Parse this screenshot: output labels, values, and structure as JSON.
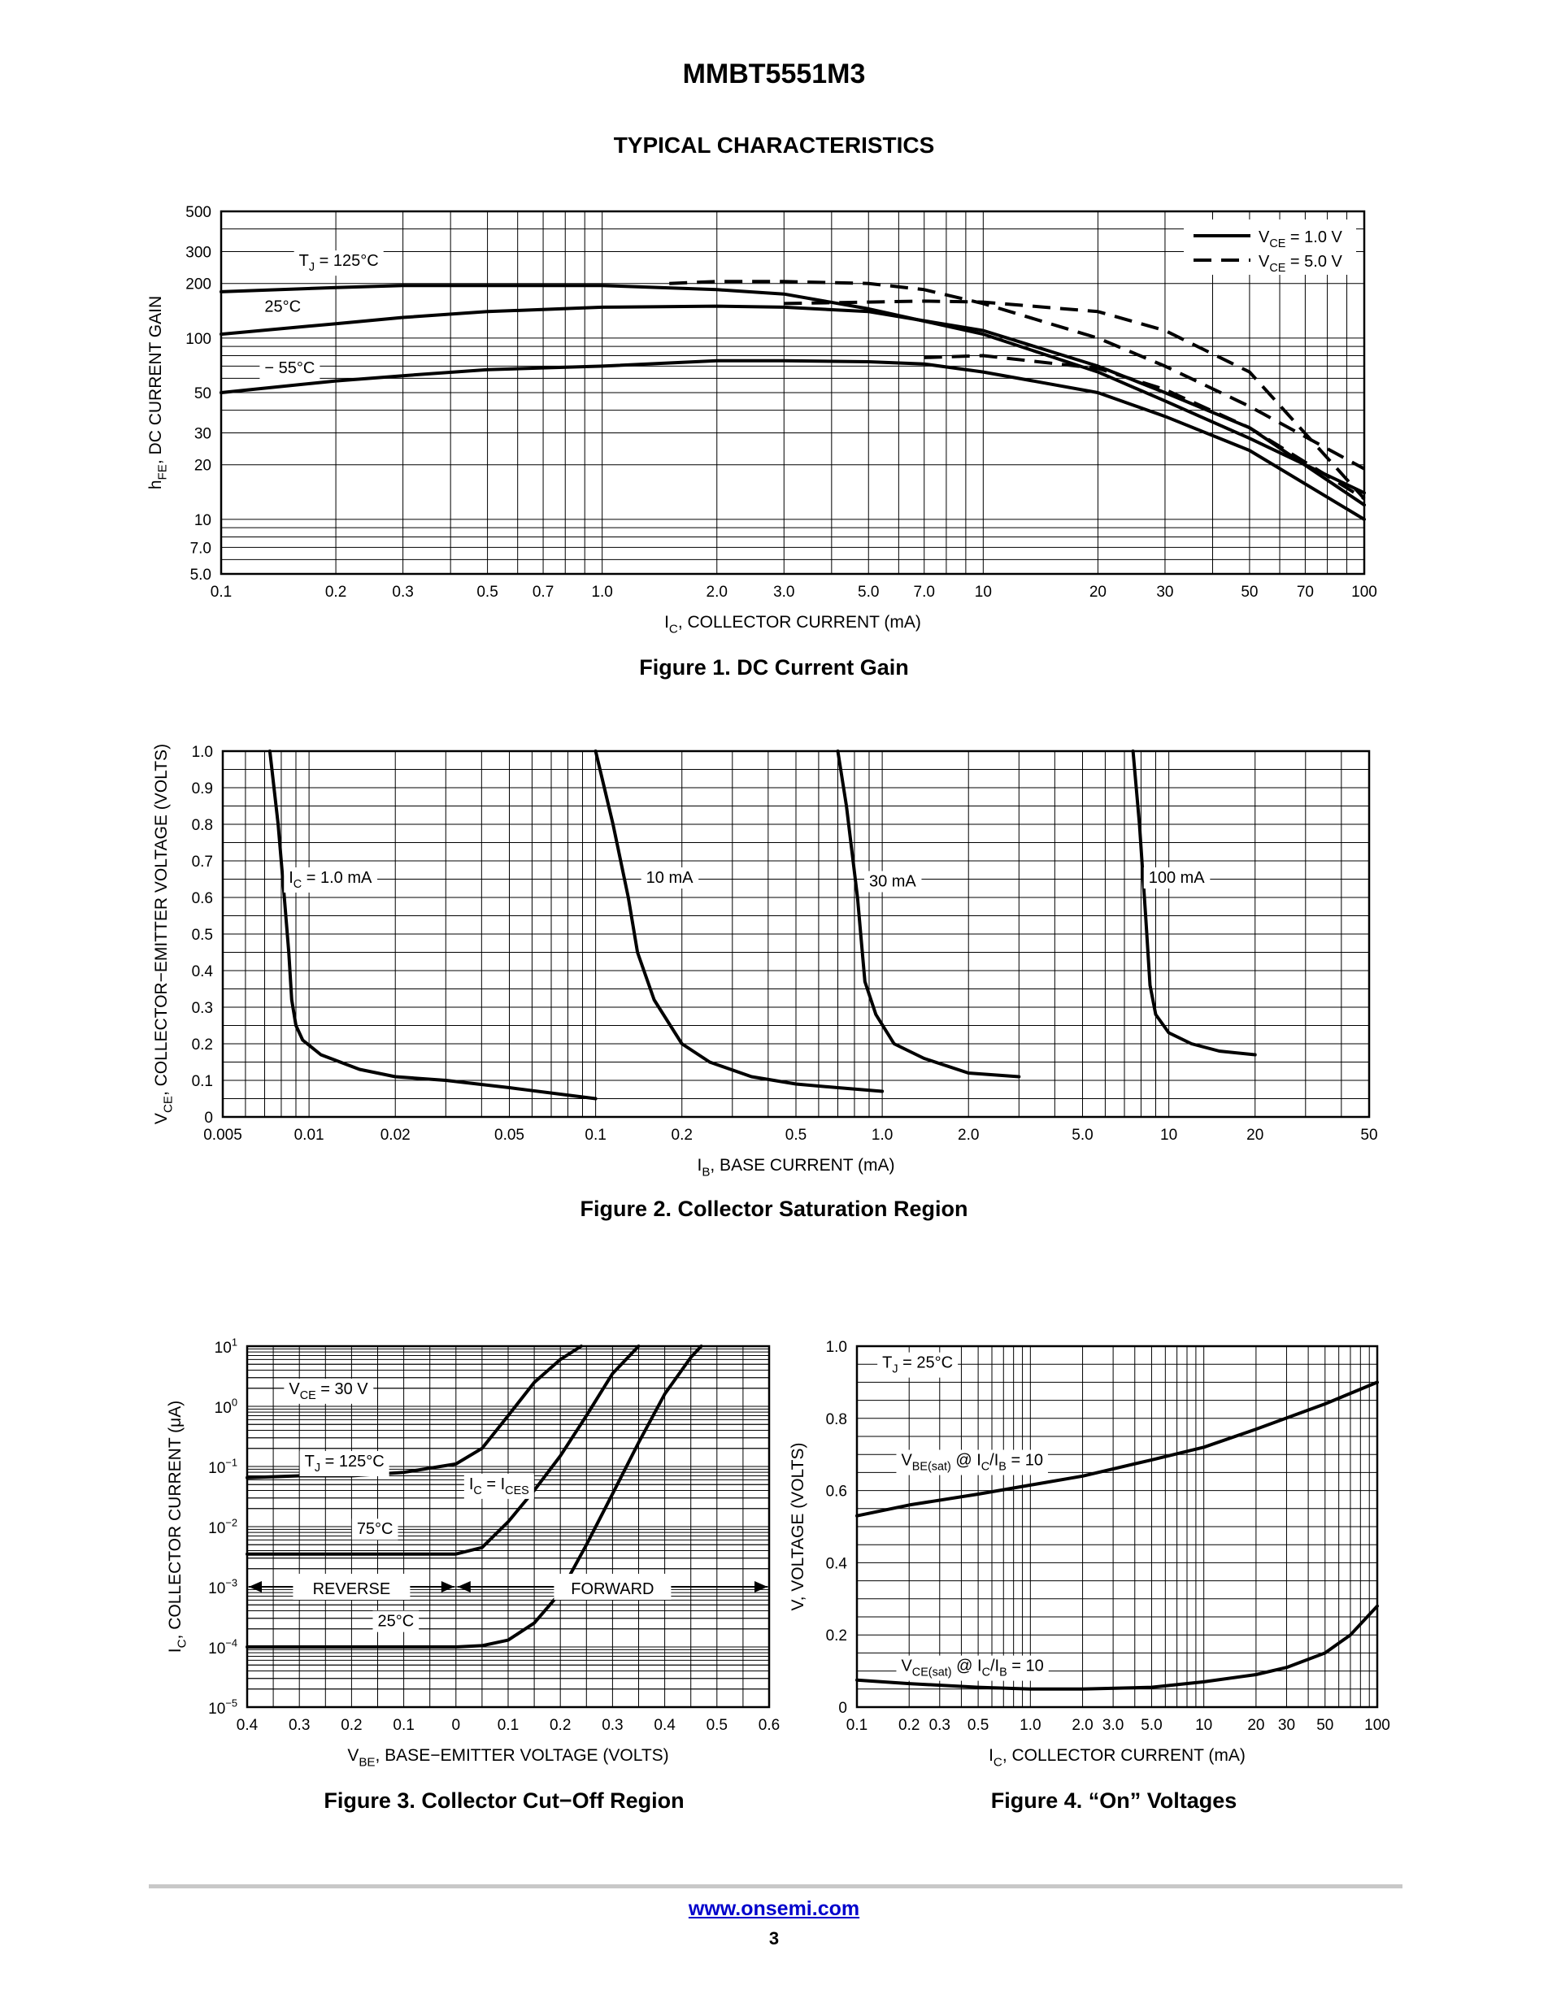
{
  "header": {
    "part_number": "MMBT5551M3",
    "section": "TYPICAL CHARACTERISTICS"
  },
  "footer": {
    "url": "www.onsemi.com",
    "page": "3"
  },
  "colors": {
    "link": "#0000cc",
    "rule": "#c8c8c8",
    "ink": "#000000"
  },
  "chart_data": [
    {
      "id": "fig1",
      "type": "line",
      "caption": "Figure 1. DC Current Gain",
      "xscale": "log",
      "yscale": "log",
      "xlim": [
        0.1,
        100
      ],
      "ylim": [
        5,
        500
      ],
      "xticks": [
        {
          "v": 0.1,
          "t": "0.1"
        },
        {
          "v": 0.2,
          "t": "0.2"
        },
        {
          "v": 0.3,
          "t": "0.3"
        },
        {
          "v": 0.5,
          "t": "0.5"
        },
        {
          "v": 0.7,
          "t": "0.7"
        },
        {
          "v": 1,
          "t": "1.0"
        },
        {
          "v": 2,
          "t": "2.0"
        },
        {
          "v": 3,
          "t": "3.0"
        },
        {
          "v": 5,
          "t": "5.0"
        },
        {
          "v": 7,
          "t": "7.0"
        },
        {
          "v": 10,
          "t": "10"
        },
        {
          "v": 20,
          "t": "20"
        },
        {
          "v": 30,
          "t": "30"
        },
        {
          "v": 50,
          "t": "50"
        },
        {
          "v": 70,
          "t": "70"
        },
        {
          "v": 100,
          "t": "100"
        }
      ],
      "yticks": [
        {
          "v": 5,
          "t": "5.0"
        },
        {
          "v": 7,
          "t": "7.0"
        },
        {
          "v": 10,
          "t": "10"
        },
        {
          "v": 20,
          "t": "20"
        },
        {
          "v": 30,
          "t": "30"
        },
        {
          "v": 50,
          "t": "50"
        },
        {
          "v": 100,
          "t": "100"
        },
        {
          "v": 200,
          "t": "200"
        },
        {
          "v": 300,
          "t": "300"
        },
        {
          "v": 500,
          "t": "500"
        }
      ],
      "xlabel": {
        "pre": "I",
        "sub": "C",
        "post": ", COLLECTOR CURRENT (mA)"
      },
      "ylabel": {
        "pre": "h",
        "sub": "FE",
        "post": ", DC CURRENT GAIN"
      },
      "legend": {
        "position": "top-right",
        "entries": [
          {
            "style": "solid",
            "pre": "V",
            "sub": "CE",
            "post": " = 1.0 V"
          },
          {
            "style": "dashed",
            "pre": "V",
            "sub": "CE",
            "post": " = 5.0 V"
          }
        ]
      },
      "annotations": [
        {
          "pre": "T",
          "sub": "J",
          "post": " = 125°C",
          "x": 0.16,
          "y": 250
        },
        {
          "pre": "",
          "sub": "",
          "post": "25°C",
          "x": 0.13,
          "y": 140
        },
        {
          "pre": "",
          "sub": "",
          "post": "− 55°C",
          "x": 0.13,
          "y": 64
        }
      ],
      "series": [
        {
          "style": "solid",
          "x": [
            0.1,
            0.2,
            0.3,
            0.5,
            1,
            2,
            3,
            5,
            10,
            20,
            30,
            50,
            100
          ],
          "y": [
            180,
            190,
            195,
            195,
            195,
            185,
            175,
            145,
            105,
            65,
            45,
            28,
            14
          ]
        },
        {
          "style": "solid",
          "x": [
            0.1,
            0.2,
            0.3,
            0.5,
            1,
            2,
            3,
            5,
            10,
            20,
            30,
            50,
            100
          ],
          "y": [
            105,
            120,
            130,
            140,
            148,
            150,
            148,
            140,
            110,
            70,
            50,
            32,
            12
          ]
        },
        {
          "style": "solid",
          "x": [
            0.1,
            0.2,
            0.3,
            0.5,
            1,
            2,
            3,
            5,
            7,
            10,
            20,
            30,
            50,
            100
          ],
          "y": [
            50,
            58,
            62,
            67,
            70,
            75,
            75,
            74,
            72,
            65,
            50,
            37,
            24,
            10
          ]
        },
        {
          "style": "dashed",
          "x": [
            1.5,
            2,
            3,
            5,
            7,
            10,
            20,
            30,
            50,
            100
          ],
          "y": [
            200,
            205,
            205,
            200,
            185,
            155,
            100,
            70,
            42,
            19
          ]
        },
        {
          "style": "dashed",
          "x": [
            3,
            5,
            7,
            10,
            20,
            30,
            50,
            100
          ],
          "y": [
            155,
            158,
            160,
            158,
            140,
            110,
            65,
            13
          ]
        },
        {
          "style": "dashed",
          "x": [
            7,
            10,
            20,
            30,
            50,
            100
          ],
          "y": [
            78,
            80,
            68,
            52,
            32,
            13
          ]
        }
      ]
    },
    {
      "id": "fig2",
      "type": "line",
      "caption": "Figure 2. Collector Saturation Region",
      "xscale": "log",
      "yscale": "linear",
      "xlim": [
        0.005,
        50
      ],
      "ylim": [
        0,
        1.0
      ],
      "xticks": [
        {
          "v": 0.005,
          "t": "0.005"
        },
        {
          "v": 0.01,
          "t": "0.01"
        },
        {
          "v": 0.02,
          "t": "0.02"
        },
        {
          "v": 0.05,
          "t": "0.05"
        },
        {
          "v": 0.1,
          "t": "0.1"
        },
        {
          "v": 0.2,
          "t": "0.2"
        },
        {
          "v": 0.5,
          "t": "0.5"
        },
        {
          "v": 1,
          "t": "1.0"
        },
        {
          "v": 2,
          "t": "2.0"
        },
        {
          "v": 5,
          "t": "5.0"
        },
        {
          "v": 10,
          "t": "10"
        },
        {
          "v": 20,
          "t": "20"
        },
        {
          "v": 50,
          "t": "50"
        }
      ],
      "yticks": [
        {
          "v": 0,
          "t": "0"
        },
        {
          "v": 0.1,
          "t": "0.1"
        },
        {
          "v": 0.2,
          "t": "0.2"
        },
        {
          "v": 0.3,
          "t": "0.3"
        },
        {
          "v": 0.4,
          "t": "0.4"
        },
        {
          "v": 0.5,
          "t": "0.5"
        },
        {
          "v": 0.6,
          "t": "0.6"
        },
        {
          "v": 0.7,
          "t": "0.7"
        },
        {
          "v": 0.8,
          "t": "0.8"
        },
        {
          "v": 0.9,
          "t": "0.9"
        },
        {
          "v": 1.0,
          "t": "1.0"
        }
      ],
      "xlabel": {
        "pre": "I",
        "sub": "B",
        "post": ", BASE CURRENT (mA)"
      },
      "ylabel": {
        "pre": "V",
        "sub": "CE",
        "post": ", COLLECTOR−EMITTER VOLTAGE (VOLTS)"
      },
      "annotations": [
        {
          "pre": "I",
          "sub": "C",
          "post": " = 1.0 mA",
          "x": 0.0085,
          "y": 0.64
        },
        {
          "pre": "",
          "sub": "",
          "post": "10 mA",
          "x": 0.15,
          "y": 0.64
        },
        {
          "pre": "",
          "sub": "",
          "post": "30 mA",
          "x": 0.9,
          "y": 0.63
        },
        {
          "pre": "",
          "sub": "",
          "post": "100 mA",
          "x": 8.5,
          "y": 0.64
        }
      ],
      "series": [
        {
          "style": "solid",
          "name": "1.0 mA",
          "x": [
            0.0073,
            0.0078,
            0.0082,
            0.0085,
            0.0087,
            0.009,
            0.0095,
            0.011,
            0.015,
            0.02,
            0.03,
            0.05,
            0.1
          ],
          "y": [
            1.0,
            0.8,
            0.6,
            0.45,
            0.32,
            0.25,
            0.21,
            0.17,
            0.13,
            0.11,
            0.1,
            0.08,
            0.05
          ]
        },
        {
          "style": "solid",
          "name": "10 mA",
          "x": [
            0.1,
            0.115,
            0.13,
            0.14,
            0.16,
            0.2,
            0.25,
            0.35,
            0.5,
            0.7,
            1.0
          ],
          "y": [
            1.0,
            0.8,
            0.6,
            0.45,
            0.32,
            0.2,
            0.15,
            0.11,
            0.09,
            0.08,
            0.07
          ]
        },
        {
          "style": "solid",
          "name": "30 mA",
          "x": [
            0.7,
            0.75,
            0.82,
            0.87,
            0.95,
            1.1,
            1.4,
            2.0,
            3.0
          ],
          "y": [
            1.0,
            0.85,
            0.6,
            0.37,
            0.28,
            0.2,
            0.16,
            0.12,
            0.11
          ]
        },
        {
          "style": "solid",
          "name": "100 mA",
          "x": [
            7.5,
            7.9,
            8.3,
            8.6,
            9.0,
            10,
            12,
            15,
            20
          ],
          "y": [
            1.0,
            0.8,
            0.55,
            0.36,
            0.28,
            0.23,
            0.2,
            0.18,
            0.17
          ]
        }
      ]
    },
    {
      "id": "fig3",
      "type": "line",
      "caption": "Figure 3. Collector Cut−Off Region",
      "xscale": "linear-reversed",
      "yscale": "log",
      "xlim": [
        -0.4,
        0.6
      ],
      "ylim": [
        1e-05,
        10
      ],
      "xticks": [
        {
          "v": -0.4,
          "t": "0.4"
        },
        {
          "v": -0.3,
          "t": "0.3"
        },
        {
          "v": -0.2,
          "t": "0.2"
        },
        {
          "v": -0.1,
          "t": "0.1"
        },
        {
          "v": 0,
          "t": "0"
        },
        {
          "v": 0.1,
          "t": "0.1"
        },
        {
          "v": 0.2,
          "t": "0.2"
        },
        {
          "v": 0.3,
          "t": "0.3"
        },
        {
          "v": 0.4,
          "t": "0.4"
        },
        {
          "v": 0.5,
          "t": "0.5"
        },
        {
          "v": 0.6,
          "t": "0.6"
        }
      ],
      "yticks": [
        {
          "v": 10,
          "base": "10",
          "exp": "1"
        },
        {
          "v": 1,
          "base": "10",
          "exp": "0"
        },
        {
          "v": 0.1,
          "base": "10",
          "exp": "−1"
        },
        {
          "v": 0.01,
          "base": "10",
          "exp": "−2"
        },
        {
          "v": 0.001,
          "base": "10",
          "exp": "−3"
        },
        {
          "v": 0.0001,
          "base": "10",
          "exp": "−4"
        },
        {
          "v": 1e-05,
          "base": "10",
          "exp": "−5"
        }
      ],
      "xlabel": {
        "pre": "V",
        "sub": "BE",
        "post": ", BASE−EMITTER VOLTAGE (VOLTS)"
      },
      "ylabel": {
        "pre": "I",
        "sub": "C",
        "post": ", COLLECTOR CURRENT (μA)"
      },
      "regions": [
        {
          "label": "REVERSE",
          "from": -0.4,
          "to": 0,
          "y": 0.001
        },
        {
          "label": "FORWARD",
          "from": 0,
          "to": 0.6,
          "y": 0.001
        }
      ],
      "annotations": [
        {
          "pre": "V",
          "sub": "CE",
          "post": " = 30 V",
          "x": -0.32,
          "y": 1.6
        },
        {
          "pre": "T",
          "sub": "J",
          "post": " = 125°C",
          "x": -0.29,
          "y": 0.1
        },
        {
          "pre": "I",
          "sub": "C",
          "post": " = I",
          "sub2": "CES",
          "x": 0.025,
          "y": 0.042
        },
        {
          "pre": "",
          "sub": "",
          "post": "75°C",
          "x": -0.19,
          "y": 0.0075
        },
        {
          "pre": "",
          "sub": "",
          "post": "25°C",
          "x": -0.15,
          "y": 0.00022
        }
      ],
      "series": [
        {
          "style": "solid",
          "name": "125°C",
          "x": [
            -0.4,
            -0.3,
            -0.2,
            -0.1,
            0,
            0.05,
            0.1,
            0.15,
            0.2,
            0.24
          ],
          "y": [
            0.065,
            0.07,
            0.07,
            0.08,
            0.11,
            0.2,
            0.7,
            2.5,
            6,
            10
          ]
        },
        {
          "style": "solid",
          "name": "75°C",
          "x": [
            -0.4,
            -0.3,
            -0.2,
            -0.1,
            0,
            0.05,
            0.1,
            0.15,
            0.2,
            0.25,
            0.3,
            0.35
          ],
          "y": [
            0.0035,
            0.0035,
            0.0035,
            0.0035,
            0.0035,
            0.0045,
            0.012,
            0.04,
            0.15,
            0.7,
            3.5,
            10
          ]
        },
        {
          "style": "solid",
          "name": "25°C",
          "x": [
            -0.4,
            -0.3,
            -0.2,
            -0.1,
            0,
            0.05,
            0.1,
            0.15,
            0.2,
            0.25,
            0.3,
            0.35,
            0.4,
            0.45,
            0.47
          ],
          "y": [
            0.0001,
            0.0001,
            0.0001,
            0.0001,
            0.0001,
            0.000105,
            0.00013,
            0.00025,
            0.0008,
            0.005,
            0.035,
            0.25,
            1.6,
            6.5,
            10
          ]
        }
      ]
    },
    {
      "id": "fig4",
      "type": "line",
      "caption": "Figure 4. “On” Voltages",
      "xscale": "log",
      "yscale": "linear",
      "xlim": [
        0.1,
        100
      ],
      "ylim": [
        0,
        1.0
      ],
      "xticks": [
        {
          "v": 0.1,
          "t": "0.1"
        },
        {
          "v": 0.2,
          "t": "0.2"
        },
        {
          "v": 0.3,
          "t": "0.3"
        },
        {
          "v": 0.5,
          "t": "0.5"
        },
        {
          "v": 1,
          "t": "1.0"
        },
        {
          "v": 2,
          "t": "2.0"
        },
        {
          "v": 3,
          "t": "3.0"
        },
        {
          "v": 5,
          "t": "5.0"
        },
        {
          "v": 10,
          "t": "10"
        },
        {
          "v": 20,
          "t": "20"
        },
        {
          "v": 30,
          "t": "30"
        },
        {
          "v": 50,
          "t": "50"
        },
        {
          "v": 100,
          "t": "100"
        }
      ],
      "yticks": [
        {
          "v": 0,
          "t": "0"
        },
        {
          "v": 0.2,
          "t": "0.2"
        },
        {
          "v": 0.4,
          "t": "0.4"
        },
        {
          "v": 0.6,
          "t": "0.6"
        },
        {
          "v": 0.8,
          "t": "0.8"
        },
        {
          "v": 1.0,
          "t": "1.0"
        }
      ],
      "xlabel": {
        "pre": "I",
        "sub": "C",
        "post": ", COLLECTOR CURRENT (mA)"
      },
      "ylabel": {
        "pre": "V, VOLTAGE (VOLTS)",
        "sub": "",
        "post": ""
      },
      "annotations": [
        {
          "pre": "T",
          "sub": "J",
          "post": " = 25°C",
          "x": 0.14,
          "y": 0.94
        },
        {
          "pre": "V",
          "sub": "BE(sat)",
          "post": " @ I",
          "sub2": "C",
          "post2": "/I",
          "sub3": "B",
          "post3": " = 10",
          "x": 0.18,
          "y": 0.67
        },
        {
          "pre": "V",
          "sub": "CE(sat)",
          "post": " @ I",
          "sub2": "C",
          "post2": "/I",
          "sub3": "B",
          "post3": " = 10",
          "x": 0.18,
          "y": 0.1
        }
      ],
      "series": [
        {
          "style": "solid",
          "name": "VBE(sat)",
          "x": [
            0.1,
            0.2,
            0.5,
            1,
            2,
            5,
            10,
            20,
            50,
            100
          ],
          "y": [
            0.53,
            0.56,
            0.59,
            0.615,
            0.64,
            0.685,
            0.72,
            0.77,
            0.84,
            0.9
          ]
        },
        {
          "style": "solid",
          "name": "VCE(sat)",
          "x": [
            0.1,
            0.2,
            0.5,
            1,
            2,
            5,
            10,
            20,
            30,
            50,
            70,
            100
          ],
          "y": [
            0.075,
            0.065,
            0.055,
            0.05,
            0.05,
            0.055,
            0.07,
            0.09,
            0.11,
            0.15,
            0.2,
            0.28
          ]
        }
      ]
    }
  ]
}
